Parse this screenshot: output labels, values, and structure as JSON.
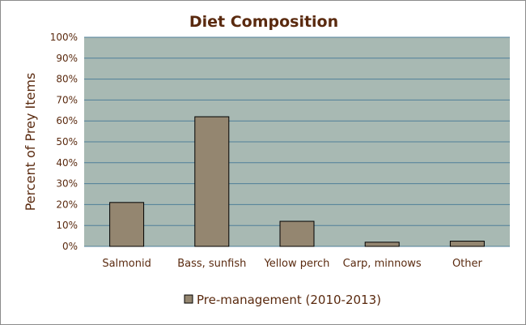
{
  "chart_data": {
    "type": "bar",
    "title": "Diet Composition",
    "ylabel": "Percent of Prey Items",
    "xlabel": "",
    "categories": [
      "Salmonid",
      "Bass, sunfish",
      "Yellow perch",
      "Carp, minnows",
      "Other"
    ],
    "series": [
      {
        "name": "Pre-management (2010-2013)",
        "values": [
          21,
          62,
          12,
          2,
          2.5
        ]
      }
    ],
    "ylim": [
      0,
      100
    ],
    "yticks": [
      "0%",
      "10%",
      "20%",
      "30%",
      "40%",
      "50%",
      "60%",
      "70%",
      "80%",
      "90%",
      "100%"
    ],
    "grid": true,
    "legend_position": "bottom",
    "colors": {
      "plot_background": "#a8b9b3",
      "bar_fill": "#948670",
      "gridline": "#4f7f99",
      "text": "#5a2a0f"
    }
  }
}
